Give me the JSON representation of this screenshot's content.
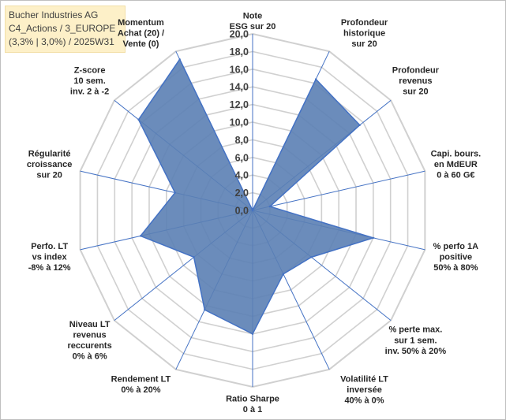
{
  "info_box": {
    "line1": "Bucher Industries AG",
    "line2": "C4_Actions / 3_EUROPE",
    "line3": "(3,3% | 3,0%) / 2025W31"
  },
  "chart_data": {
    "type": "radar",
    "title": "",
    "rlim": [
      0,
      20
    ],
    "ticks": [
      "0,0",
      "2,0",
      "4,0",
      "6,0",
      "8,0",
      "10,0",
      "12,0",
      "14,0",
      "16,0",
      "18,0",
      "20,0"
    ],
    "grid": true,
    "legend": "none",
    "colors": {
      "fill": "#5b7fb4",
      "line": "#4472c4",
      "grid": "#d0d0d0",
      "axis": "#4472c4"
    },
    "axes": [
      {
        "label": [
          "Note",
          "ESG sur 20"
        ],
        "value": 0.0
      },
      {
        "label": [
          "Profondeur",
          "historique",
          "sur 20"
        ],
        "value": 16.5
      },
      {
        "label": [
          "Profondeur",
          "revenus",
          "sur 20"
        ],
        "value": 15.5
      },
      {
        "label": [
          "Capi. bours.",
          "en MdEUR",
          "0 à 60 G€"
        ],
        "value": 2.0
      },
      {
        "label": [
          "% perfo 1A",
          "positive",
          "50% à 80%"
        ],
        "value": 14.0
      },
      {
        "label": [
          "% perte max.",
          "sur 1 sem.",
          "inv. 50% à 20%"
        ],
        "value": 8.5
      },
      {
        "label": [
          "Volatilité LT",
          "inversée",
          "40% à 0%"
        ],
        "value": 8.0
      },
      {
        "label": [
          "Ratio Sharpe",
          "0 à 1"
        ],
        "value": 14.0
      },
      {
        "label": [
          "Rendement LT",
          "0% à 20%"
        ],
        "value": 12.5
      },
      {
        "label": [
          "Niveau LT",
          "revenus",
          "reccurents",
          "0% à 6%"
        ],
        "value": 8.5
      },
      {
        "label": [
          "Perfo. LT",
          "vs index",
          "-8% à 12%"
        ],
        "value": 13.0
      },
      {
        "label": [
          "Régularité",
          "croissance",
          "sur 20"
        ],
        "value": 9.0
      },
      {
        "label": [
          "Z-score",
          "10 sem.",
          "inv. 2 à -2"
        ],
        "value": 16.5
      },
      {
        "label": [
          "Momentum",
          "Achat (20) /",
          "Vente (0)"
        ],
        "value": 19.0
      }
    ]
  }
}
